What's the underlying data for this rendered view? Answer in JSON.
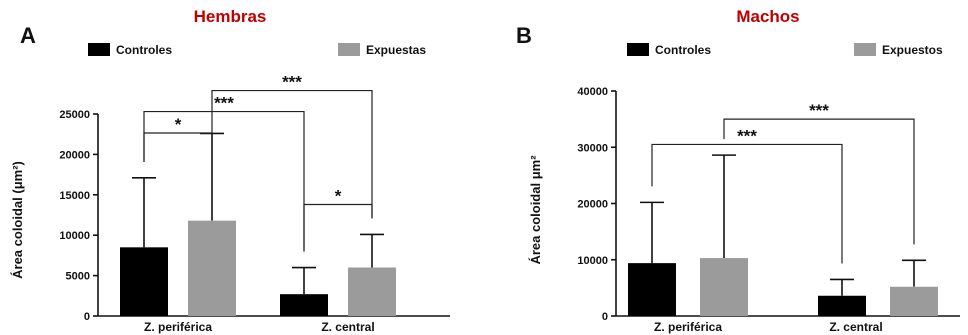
{
  "colors": {
    "control": "#000000",
    "exposed": "#9b9b9b",
    "title": "#c00000"
  },
  "chart_data": [
    {
      "type": "bar",
      "panel": "A",
      "title": "Hembras",
      "ylabel": "Área coloidal (μm²)",
      "ylim": [
        0,
        25000
      ],
      "yticks": [
        "0",
        "5000",
        "10000",
        "15000",
        "20000",
        "25000"
      ],
      "categories": [
        "Z. periférica",
        "Z. central"
      ],
      "series": [
        {
          "name": "Controles",
          "values": [
            8500,
            2700
          ],
          "error": [
            8600,
            3300
          ]
        },
        {
          "name": "Expuestas",
          "values": [
            11800,
            6000
          ],
          "error": [
            10800,
            4100
          ]
        }
      ],
      "significance": [
        "*",
        "***",
        "***",
        "*"
      ]
    },
    {
      "type": "bar",
      "panel": "B",
      "title": "Machos",
      "ylabel": "Área coloidal μm²",
      "ylim": [
        0,
        40000
      ],
      "yticks": [
        "0",
        "10000",
        "20000",
        "30000",
        "40000"
      ],
      "categories": [
        "Z. periférica",
        "Z. central"
      ],
      "series": [
        {
          "name": "Controles",
          "values": [
            9400,
            3600
          ],
          "error": [
            10800,
            2900
          ]
        },
        {
          "name": "Expuestos",
          "values": [
            10300,
            5200
          ],
          "error": [
            18300,
            4700
          ]
        }
      ],
      "significance": [
        "***",
        "***"
      ]
    }
  ]
}
